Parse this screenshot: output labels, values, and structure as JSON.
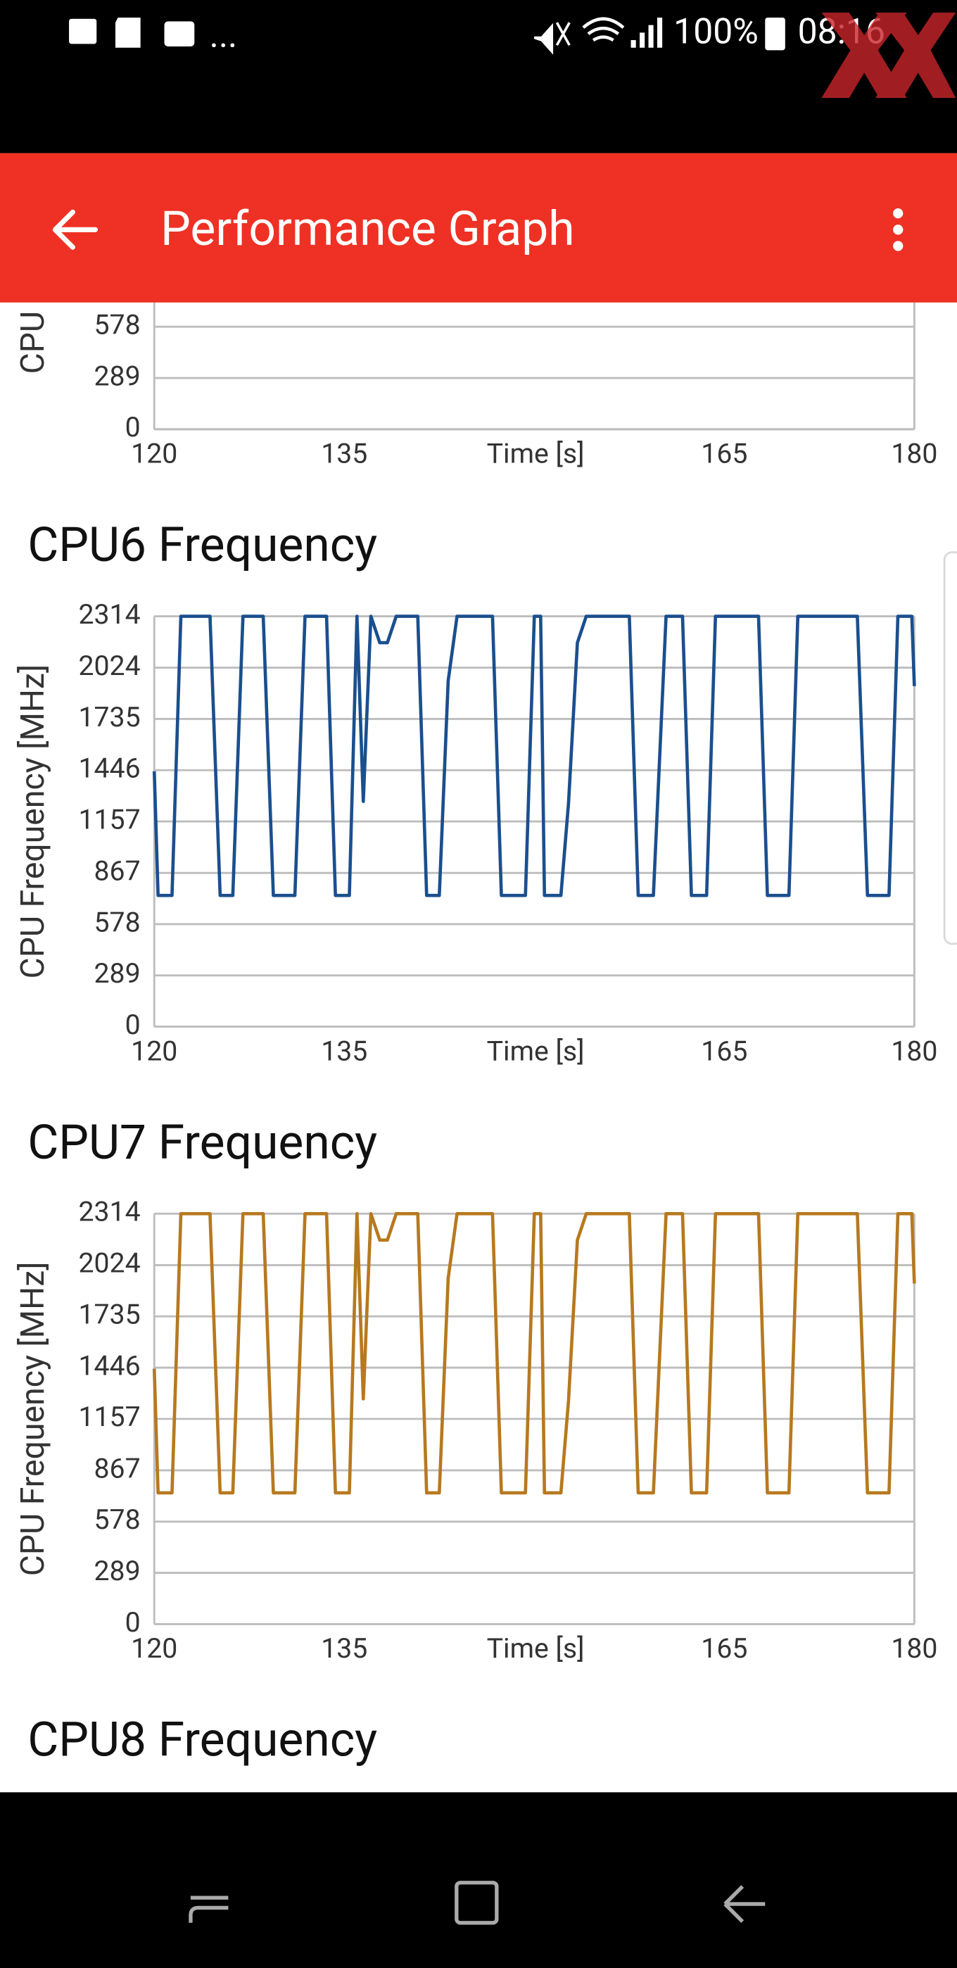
{
  "status_bar": {
    "more": "...",
    "battery": "100%",
    "time": "08:16"
  },
  "app_bar": {
    "title": "Performance Graph"
  },
  "chart_data": [
    {
      "type": "line",
      "ylabel": "CPU",
      "xlabel": "Time [s]",
      "xlim": [
        120,
        180
      ],
      "xticks": [
        120,
        135,
        165,
        180
      ],
      "ylim": [
        0,
        2314
      ],
      "yticks": [
        0,
        289,
        578
      ],
      "grid": true
    },
    {
      "type": "line",
      "title": "CPU6 Frequency",
      "ylabel": "CPU Frequency [MHz]",
      "xlabel": "Time [s]",
      "xlim": [
        120,
        180
      ],
      "xticks": [
        120,
        135,
        165,
        180
      ],
      "ylim": [
        0,
        2314
      ],
      "yticks": [
        0,
        289,
        578,
        867,
        1157,
        1446,
        1735,
        2024,
        2314
      ],
      "grid": true,
      "x": [
        120,
        120.3,
        121.4,
        122.1,
        124.4,
        125.2,
        126.2,
        127,
        128.6,
        129.4,
        131.1,
        131.9,
        133.6,
        134.3,
        135.4,
        136,
        136.5,
        137.1,
        137.8,
        138.4,
        139.1,
        140.8,
        141.5,
        142.5,
        143.2,
        143.9,
        146.7,
        147.4,
        149.3,
        150,
        150.5,
        150.8,
        152.1,
        152.7,
        153.4,
        154.1,
        157.5,
        158.2,
        159.4,
        160.4,
        161.7,
        162.4,
        163.6,
        164.3,
        167.7,
        168.4,
        170.1,
        170.8,
        175.5,
        176.3,
        178,
        178.7,
        179.8,
        180
      ],
      "series": [
        {
          "color": "#1b4f8e",
          "values": [
            1440,
            740,
            740,
            2314,
            2314,
            740,
            740,
            2314,
            2314,
            740,
            740,
            2314,
            2314,
            740,
            740,
            2314,
            1270,
            2314,
            2165,
            2165,
            2314,
            2314,
            740,
            740,
            1950,
            2314,
            2314,
            740,
            740,
            2314,
            2314,
            740,
            740,
            1260,
            2165,
            2314,
            2314,
            740,
            740,
            2314,
            2314,
            740,
            740,
            2314,
            2314,
            740,
            740,
            2314,
            2314,
            740,
            740,
            2314,
            2314,
            1920
          ]
        }
      ]
    },
    {
      "type": "line",
      "title": "CPU7 Frequency",
      "ylabel": "CPU Frequency [MHz]",
      "xlabel": "Time [s]",
      "xlim": [
        120,
        180
      ],
      "xticks": [
        120,
        135,
        165,
        180
      ],
      "ylim": [
        0,
        2314
      ],
      "yticks": [
        0,
        289,
        578,
        867,
        1157,
        1446,
        1735,
        2024,
        2314
      ],
      "grid": true,
      "x": [
        120,
        120.3,
        121.4,
        122.1,
        124.4,
        125.2,
        126.2,
        127,
        128.6,
        129.4,
        131.1,
        131.9,
        133.6,
        134.3,
        135.4,
        136,
        136.5,
        137.1,
        137.8,
        138.4,
        139.1,
        140.8,
        141.5,
        142.5,
        143.2,
        143.9,
        146.7,
        147.4,
        149.3,
        150,
        150.5,
        150.8,
        152.1,
        152.7,
        153.4,
        154.1,
        157.5,
        158.2,
        159.4,
        160.4,
        161.7,
        162.4,
        163.6,
        164.3,
        167.7,
        168.4,
        170.1,
        170.8,
        175.5,
        176.3,
        178,
        178.7,
        179.8,
        180
      ],
      "series": [
        {
          "color": "#b7791f",
          "values": [
            1440,
            740,
            740,
            2314,
            2314,
            740,
            740,
            2314,
            2314,
            740,
            740,
            2314,
            2314,
            740,
            740,
            2314,
            1270,
            2314,
            2165,
            2165,
            2314,
            2314,
            740,
            740,
            1950,
            2314,
            2314,
            740,
            740,
            2314,
            2314,
            740,
            740,
            1260,
            2165,
            2314,
            2314,
            740,
            740,
            2314,
            2314,
            740,
            740,
            2314,
            2314,
            740,
            740,
            2314,
            2314,
            740,
            740,
            2314,
            2314,
            1920
          ]
        }
      ]
    },
    {
      "type": "line",
      "title": "CPU8 Frequency"
    }
  ]
}
